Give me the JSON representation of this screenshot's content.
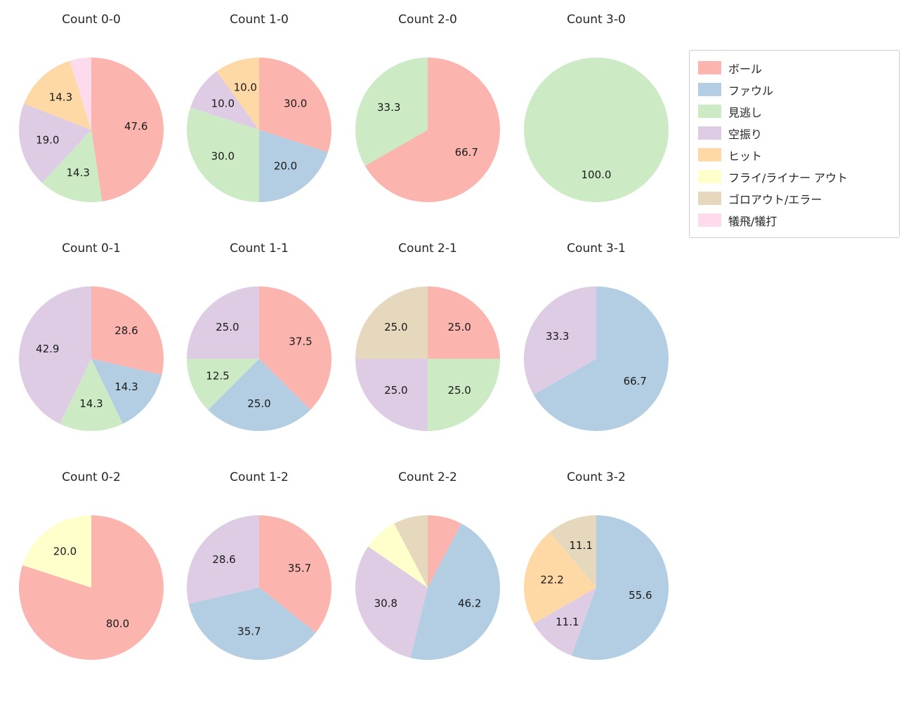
{
  "legend": {
    "items": [
      {
        "label": "ボール",
        "color": "#fbb4ae"
      },
      {
        "label": "ファウル",
        "color": "#b3cde3"
      },
      {
        "label": "見逃し",
        "color": "#ccebc5"
      },
      {
        "label": "空振り",
        "color": "#decbe4"
      },
      {
        "label": "ヒット",
        "color": "#fed9a6"
      },
      {
        "label": "フライ/ライナー アウト",
        "color": "#ffffcc"
      },
      {
        "label": "ゴロアウト/エラー",
        "color": "#e5d8bd"
      },
      {
        "label": "犠飛/犠打",
        "color": "#fddaec"
      }
    ]
  },
  "chart_data": [
    {
      "type": "pie",
      "title": "Count 0-0",
      "slices": [
        {
          "category": "ボール",
          "value": 47.6,
          "label": "47.6"
        },
        {
          "category": "見逃し",
          "value": 14.3,
          "label": "14.3"
        },
        {
          "category": "空振り",
          "value": 19.0,
          "label": "19.0"
        },
        {
          "category": "ヒット",
          "value": 14.3,
          "label": "14.3"
        },
        {
          "category": "犠飛/犠打",
          "value": 4.8,
          "label": ""
        }
      ]
    },
    {
      "type": "pie",
      "title": "Count 1-0",
      "slices": [
        {
          "category": "ボール",
          "value": 30.0,
          "label": "30.0"
        },
        {
          "category": "ファウル",
          "value": 20.0,
          "label": "20.0"
        },
        {
          "category": "見逃し",
          "value": 30.0,
          "label": "30.0"
        },
        {
          "category": "空振り",
          "value": 10.0,
          "label": "10.0"
        },
        {
          "category": "ヒット",
          "value": 10.0,
          "label": "10.0"
        }
      ]
    },
    {
      "type": "pie",
      "title": "Count 2-0",
      "slices": [
        {
          "category": "ボール",
          "value": 66.7,
          "label": "66.7"
        },
        {
          "category": "見逃し",
          "value": 33.3,
          "label": "33.3"
        }
      ]
    },
    {
      "type": "pie",
      "title": "Count 3-0",
      "slices": [
        {
          "category": "見逃し",
          "value": 100.0,
          "label": "100.0"
        }
      ]
    },
    {
      "type": "pie",
      "title": "Count 0-1",
      "slices": [
        {
          "category": "ボール",
          "value": 28.6,
          "label": "28.6"
        },
        {
          "category": "ファウル",
          "value": 14.3,
          "label": "14.3"
        },
        {
          "category": "見逃し",
          "value": 14.3,
          "label": "14.3"
        },
        {
          "category": "空振り",
          "value": 42.9,
          "label": "42.9"
        }
      ]
    },
    {
      "type": "pie",
      "title": "Count 1-1",
      "slices": [
        {
          "category": "ボール",
          "value": 37.5,
          "label": "37.5"
        },
        {
          "category": "ファウル",
          "value": 25.0,
          "label": "25.0"
        },
        {
          "category": "見逃し",
          "value": 12.5,
          "label": "12.5"
        },
        {
          "category": "空振り",
          "value": 25.0,
          "label": "25.0"
        }
      ]
    },
    {
      "type": "pie",
      "title": "Count 2-1",
      "slices": [
        {
          "category": "ボール",
          "value": 25.0,
          "label": "25.0"
        },
        {
          "category": "見逃し",
          "value": 25.0,
          "label": "25.0"
        },
        {
          "category": "空振り",
          "value": 25.0,
          "label": "25.0"
        },
        {
          "category": "ゴロアウト/エラー",
          "value": 25.0,
          "label": "25.0"
        }
      ]
    },
    {
      "type": "pie",
      "title": "Count 3-1",
      "slices": [
        {
          "category": "ファウル",
          "value": 66.7,
          "label": "66.7"
        },
        {
          "category": "空振り",
          "value": 33.3,
          "label": "33.3"
        }
      ]
    },
    {
      "type": "pie",
      "title": "Count 0-2",
      "slices": [
        {
          "category": "ボール",
          "value": 80.0,
          "label": "80.0"
        },
        {
          "category": "フライ/ライナー アウト",
          "value": 20.0,
          "label": "20.0"
        }
      ]
    },
    {
      "type": "pie",
      "title": "Count 1-2",
      "slices": [
        {
          "category": "ボール",
          "value": 35.7,
          "label": "35.7"
        },
        {
          "category": "ファウル",
          "value": 35.7,
          "label": "35.7"
        },
        {
          "category": "空振り",
          "value": 28.6,
          "label": "28.6"
        }
      ]
    },
    {
      "type": "pie",
      "title": "Count 2-2",
      "slices": [
        {
          "category": "ボール",
          "value": 7.7,
          "label": ""
        },
        {
          "category": "ファウル",
          "value": 46.2,
          "label": "46.2"
        },
        {
          "category": "空振り",
          "value": 30.8,
          "label": "30.8"
        },
        {
          "category": "フライ/ライナー アウト",
          "value": 7.7,
          "label": ""
        },
        {
          "category": "ゴロアウト/エラー",
          "value": 7.7,
          "label": ""
        }
      ]
    },
    {
      "type": "pie",
      "title": "Count 3-2",
      "slices": [
        {
          "category": "ファウル",
          "value": 55.6,
          "label": "55.6"
        },
        {
          "category": "空振り",
          "value": 11.1,
          "label": "11.1"
        },
        {
          "category": "ヒット",
          "value": 22.2,
          "label": "22.2"
        },
        {
          "category": "ゴロアウト/エラー",
          "value": 11.1,
          "label": "11.1"
        }
      ]
    }
  ]
}
